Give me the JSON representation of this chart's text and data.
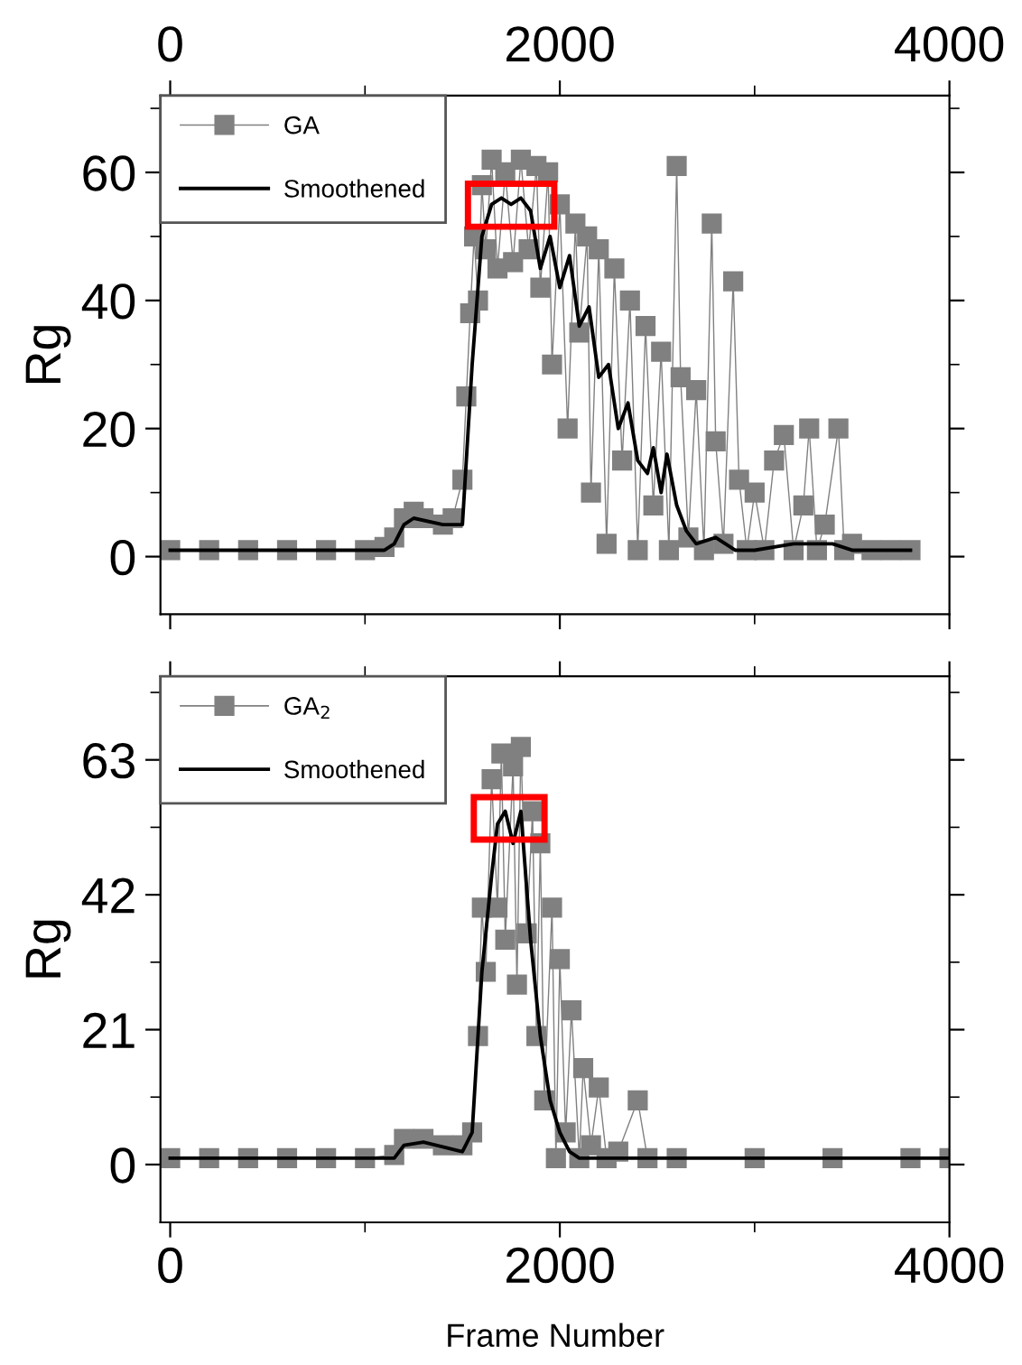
{
  "chart_data": [
    {
      "type": "line",
      "ylabel": "Rg",
      "xlim": [
        -50,
        4000
      ],
      "xticks": [
        0,
        2000,
        4000
      ],
      "ylim": [
        -9,
        72
      ],
      "yticks": [
        0,
        20,
        40,
        60
      ],
      "grid": false,
      "legend": "top left",
      "series": [
        {
          "name": "GA",
          "color": "#808080",
          "marker": "square",
          "x": [
            0,
            200,
            400,
            600,
            800,
            1000,
            1100,
            1150,
            1200,
            1250,
            1300,
            1400,
            1450,
            1500,
            1520,
            1540,
            1560,
            1580,
            1600,
            1620,
            1650,
            1680,
            1720,
            1760,
            1800,
            1840,
            1880,
            1900,
            1940,
            1960,
            2000,
            2040,
            2080,
            2100,
            2140,
            2160,
            2200,
            2240,
            2280,
            2320,
            2360,
            2400,
            2440,
            2480,
            2520,
            2560,
            2600,
            2620,
            2660,
            2700,
            2740,
            2780,
            2800,
            2840,
            2890,
            2920,
            2960,
            3000,
            3050,
            3100,
            3150,
            3200,
            3250,
            3280,
            3320,
            3360,
            3430,
            3460,
            3500,
            3600,
            3700,
            3800
          ],
          "values": [
            1,
            1,
            1,
            1,
            1,
            1,
            1.5,
            3,
            6,
            7,
            6,
            5,
            6,
            12,
            25,
            38,
            50,
            40,
            58,
            48,
            62,
            45,
            60,
            46,
            62,
            48,
            61,
            42,
            60,
            30,
            55,
            20,
            52,
            35,
            50,
            10,
            48,
            2,
            45,
            15,
            40,
            1,
            36,
            8,
            32,
            1,
            61,
            28,
            3,
            26,
            1,
            52,
            18,
            2,
            43,
            12,
            1,
            10,
            1,
            15,
            19,
            1,
            8,
            20,
            1,
            5,
            20,
            1,
            2,
            1,
            1,
            1
          ]
        },
        {
          "name": "Smoothened",
          "color": "#000000",
          "marker": "none",
          "x": [
            0,
            1100,
            1150,
            1200,
            1250,
            1400,
            1500,
            1550,
            1600,
            1650,
            1700,
            1750,
            1800,
            1850,
            1900,
            1950,
            2000,
            2050,
            2100,
            2150,
            2200,
            2250,
            2300,
            2350,
            2400,
            2450,
            2480,
            2520,
            2550,
            2600,
            2650,
            2700,
            2800,
            2900,
            3000,
            3200,
            3400,
            3500,
            3800
          ],
          "values": [
            1,
            1,
            2,
            5,
            6,
            5,
            5,
            30,
            50,
            55,
            56,
            55,
            56,
            54,
            45,
            50,
            42,
            47,
            36,
            39,
            28,
            30,
            20,
            24,
            15,
            13,
            17,
            10,
            16,
            8,
            4,
            2,
            3,
            1,
            1,
            2,
            2,
            1,
            1
          ]
        }
      ]
    },
    {
      "type": "line",
      "ylabel": "Rg",
      "xlabel": "Frame Number",
      "xlim": [
        -50,
        4000
      ],
      "xticks": [
        0,
        2000,
        4000
      ],
      "ylim": [
        -9,
        76
      ],
      "yticks": [
        0,
        21,
        42,
        63
      ],
      "grid": false,
      "legend": "top left",
      "series": [
        {
          "name": "GA$_{2}$",
          "color": "#808080",
          "marker": "square",
          "x": [
            0,
            200,
            400,
            600,
            800,
            1000,
            1150,
            1200,
            1300,
            1400,
            1500,
            1550,
            1580,
            1600,
            1620,
            1650,
            1680,
            1700,
            1720,
            1760,
            1780,
            1800,
            1830,
            1860,
            1880,
            1900,
            1920,
            1960,
            1980,
            2000,
            2030,
            2060,
            2100,
            2120,
            2160,
            2200,
            2240,
            2300,
            2400,
            2450,
            2600,
            3000,
            3400,
            3800,
            4000
          ],
          "values": [
            1,
            1,
            1,
            1,
            1,
            1,
            1.5,
            4,
            4,
            3,
            3,
            5,
            20,
            40,
            30,
            60,
            40,
            64,
            35,
            62,
            28,
            65,
            36,
            55,
            20,
            50,
            10,
            40,
            1,
            32,
            5,
            24,
            1,
            15,
            3,
            12,
            1,
            2,
            10,
            1,
            1,
            1,
            1,
            1,
            1
          ]
        },
        {
          "name": "Smoothened",
          "color": "#000000",
          "marker": "none",
          "x": [
            0,
            1150,
            1200,
            1300,
            1500,
            1550,
            1600,
            1650,
            1680,
            1720,
            1760,
            1800,
            1850,
            1900,
            1950,
            2000,
            2050,
            2100,
            2200,
            3000,
            4000
          ],
          "values": [
            1,
            1,
            3,
            3.5,
            2,
            5,
            30,
            45,
            53,
            55,
            50,
            55,
            35,
            20,
            10,
            5,
            2,
            1,
            1,
            1,
            1
          ]
        }
      ]
    }
  ]
}
